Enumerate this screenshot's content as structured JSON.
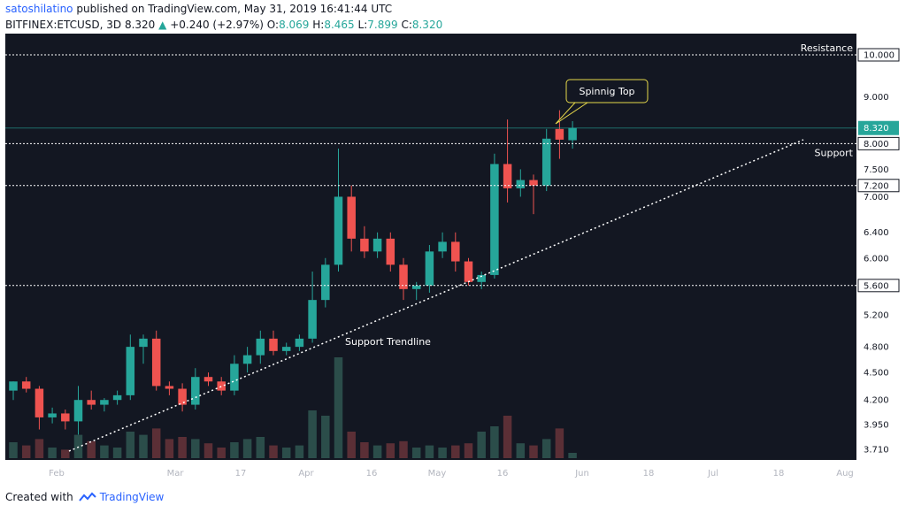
{
  "header": {
    "author": "satoshilatino",
    "published_text": "published on TradingView.com, May 31, 2019 16:41:44 UTC",
    "symbol": "BITFINEX:ETCUSD, 3D",
    "last": "8.320",
    "arrow": "▲",
    "change": "+0.240 (+2.97%)",
    "o_label": "O:",
    "o_val": "8.069",
    "h_label": "H:",
    "h_val": "8.465",
    "l_label": "L:",
    "l_val": "7.899",
    "c_label": "C:",
    "c_val": "8.320"
  },
  "footer": {
    "created": "Created with",
    "brand": "TradingView"
  },
  "colors": {
    "background": "#131722",
    "up": "#26a69a",
    "down": "#ef5350",
    "vol_up": "#2b4d4a",
    "vol_down": "#5b2f36",
    "annotation_bg": "#131722",
    "annotation_border": "#e6d84a"
  },
  "chart_data": {
    "type": "candlestick",
    "scale": "log",
    "y_ticks": [
      "3.710",
      "3.950",
      "4.200",
      "4.500",
      "4.800",
      "5.200",
      "5.600",
      "6.000",
      "6.400",
      "7.000",
      "7.500",
      "8.000",
      "9.000",
      "10.000"
    ],
    "y_tick_values": [
      3.71,
      3.95,
      4.2,
      4.5,
      4.8,
      5.2,
      5.6,
      6.0,
      6.4,
      7.0,
      7.5,
      8.0,
      9.0,
      10.0
    ],
    "x_ticks": [
      "Feb",
      "Mar",
      "17",
      "Apr",
      "16",
      "May",
      "16",
      "Jun",
      "18",
      "Jul",
      "18",
      "Aug"
    ],
    "last_price": "8.320",
    "levels": [
      {
        "value": 10.0,
        "label": "Resistance"
      },
      {
        "value": 8.0,
        "label": "Support"
      },
      {
        "value": 7.2,
        "label": "7.200"
      },
      {
        "value": 5.6,
        "label": "5.600"
      }
    ],
    "trendline_label": "Support Trendline",
    "annotation": "Spinnig Top",
    "candles": [
      {
        "o": 4.3,
        "h": 4.4,
        "l": 4.2,
        "c": 4.4,
        "v": 0.15
      },
      {
        "o": 4.4,
        "h": 4.45,
        "l": 4.28,
        "c": 4.32,
        "v": 0.12
      },
      {
        "o": 4.32,
        "h": 4.35,
        "l": 3.9,
        "c": 4.02,
        "v": 0.18
      },
      {
        "o": 4.02,
        "h": 4.12,
        "l": 3.96,
        "c": 4.06,
        "v": 0.1
      },
      {
        "o": 4.06,
        "h": 4.1,
        "l": 3.9,
        "c": 3.98,
        "v": 0.08
      },
      {
        "o": 3.98,
        "h": 4.35,
        "l": 3.85,
        "c": 4.2,
        "v": 0.22
      },
      {
        "o": 4.2,
        "h": 4.3,
        "l": 4.1,
        "c": 4.15,
        "v": 0.16
      },
      {
        "o": 4.15,
        "h": 4.22,
        "l": 4.08,
        "c": 4.2,
        "v": 0.12
      },
      {
        "o": 4.2,
        "h": 4.3,
        "l": 4.15,
        "c": 4.25,
        "v": 0.1
      },
      {
        "o": 4.25,
        "h": 4.95,
        "l": 4.2,
        "c": 4.8,
        "v": 0.25
      },
      {
        "o": 4.8,
        "h": 4.95,
        "l": 4.6,
        "c": 4.9,
        "v": 0.22
      },
      {
        "o": 4.9,
        "h": 5.0,
        "l": 4.3,
        "c": 4.35,
        "v": 0.28
      },
      {
        "o": 4.35,
        "h": 4.4,
        "l": 4.25,
        "c": 4.32,
        "v": 0.18
      },
      {
        "o": 4.32,
        "h": 4.38,
        "l": 4.08,
        "c": 4.15,
        "v": 0.2
      },
      {
        "o": 4.15,
        "h": 4.55,
        "l": 4.1,
        "c": 4.45,
        "v": 0.18
      },
      {
        "o": 4.45,
        "h": 4.5,
        "l": 4.35,
        "c": 4.4,
        "v": 0.14
      },
      {
        "o": 4.4,
        "h": 4.45,
        "l": 4.25,
        "c": 4.3,
        "v": 0.1
      },
      {
        "o": 4.3,
        "h": 4.7,
        "l": 4.25,
        "c": 4.6,
        "v": 0.15
      },
      {
        "o": 4.6,
        "h": 4.8,
        "l": 4.5,
        "c": 4.7,
        "v": 0.18
      },
      {
        "o": 4.7,
        "h": 5.0,
        "l": 4.6,
        "c": 4.9,
        "v": 0.2
      },
      {
        "o": 4.9,
        "h": 5.0,
        "l": 4.7,
        "c": 4.75,
        "v": 0.12
      },
      {
        "o": 4.75,
        "h": 4.85,
        "l": 4.7,
        "c": 4.8,
        "v": 0.1
      },
      {
        "o": 4.8,
        "h": 4.95,
        "l": 4.75,
        "c": 4.9,
        "v": 0.12
      },
      {
        "o": 4.9,
        "h": 5.8,
        "l": 4.85,
        "c": 5.4,
        "v": 0.45
      },
      {
        "o": 5.4,
        "h": 6.0,
        "l": 5.3,
        "c": 5.9,
        "v": 0.4
      },
      {
        "o": 5.9,
        "h": 7.9,
        "l": 5.8,
        "c": 7.0,
        "v": 0.95
      },
      {
        "o": 7.0,
        "h": 7.2,
        "l": 6.1,
        "c": 6.3,
        "v": 0.25
      },
      {
        "o": 6.3,
        "h": 6.5,
        "l": 6.0,
        "c": 6.1,
        "v": 0.15
      },
      {
        "o": 6.1,
        "h": 6.4,
        "l": 6.0,
        "c": 6.3,
        "v": 0.12
      },
      {
        "o": 6.3,
        "h": 6.4,
        "l": 5.8,
        "c": 5.9,
        "v": 0.14
      },
      {
        "o": 5.9,
        "h": 6.0,
        "l": 5.4,
        "c": 5.55,
        "v": 0.16
      },
      {
        "o": 5.55,
        "h": 5.65,
        "l": 5.4,
        "c": 5.6,
        "v": 0.1
      },
      {
        "o": 5.6,
        "h": 6.2,
        "l": 5.5,
        "c": 6.1,
        "v": 0.12
      },
      {
        "o": 6.1,
        "h": 6.4,
        "l": 6.0,
        "c": 6.25,
        "v": 0.1
      },
      {
        "o": 6.25,
        "h": 6.4,
        "l": 5.8,
        "c": 5.95,
        "v": 0.12
      },
      {
        "o": 5.95,
        "h": 6.0,
        "l": 5.6,
        "c": 5.65,
        "v": 0.14
      },
      {
        "o": 5.65,
        "h": 5.8,
        "l": 5.55,
        "c": 5.75,
        "v": 0.25
      },
      {
        "o": 5.75,
        "h": 7.8,
        "l": 5.7,
        "c": 7.6,
        "v": 0.3
      },
      {
        "o": 7.6,
        "h": 8.5,
        "l": 6.9,
        "c": 7.15,
        "v": 0.4
      },
      {
        "o": 7.15,
        "h": 7.5,
        "l": 7.0,
        "c": 7.3,
        "v": 0.14
      },
      {
        "o": 7.3,
        "h": 7.4,
        "l": 6.7,
        "c": 7.2,
        "v": 0.12
      },
      {
        "o": 7.2,
        "h": 8.3,
        "l": 7.1,
        "c": 8.1,
        "v": 0.18
      },
      {
        "o": 8.3,
        "h": 8.7,
        "l": 7.7,
        "c": 8.08,
        "v": 0.28
      },
      {
        "o": 8.069,
        "h": 8.465,
        "l": 7.899,
        "c": 8.32,
        "v": 0.05
      }
    ]
  }
}
